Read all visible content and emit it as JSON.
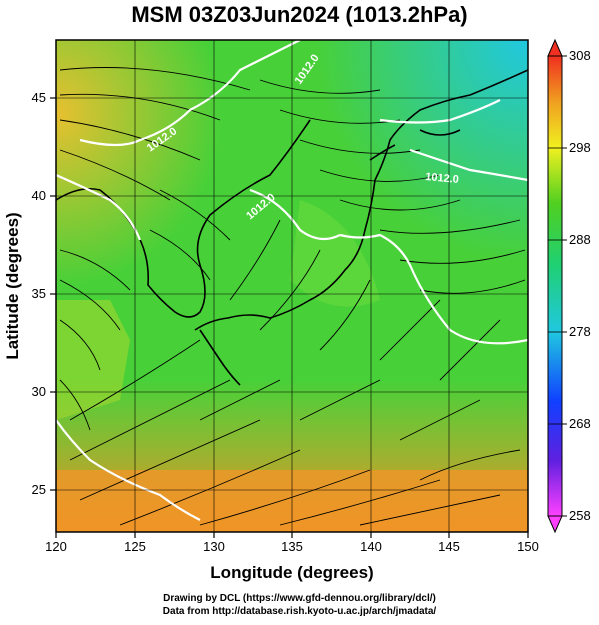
{
  "title": "MSM 03Z03Jun2024 (1013.2hPa)",
  "map": {
    "xlabel": "Longitude (degrees)",
    "ylabel": "Latitude  (degrees)",
    "lon_range": [
      120,
      150
    ],
    "lat_range": [
      22.5,
      48
    ],
    "lon_ticks": [
      "120",
      "125",
      "130",
      "135",
      "140",
      "145",
      "150"
    ],
    "lat_ticks": [
      "25",
      "30",
      "35",
      "40",
      "45"
    ],
    "contour_labels": [
      "1012.0",
      "1012.0",
      "1012.0",
      "1012.0"
    ],
    "colors": {
      "warm": "#f0a030",
      "mid": "#40d030",
      "cool": "#20c8c8",
      "contour": "#ffffff"
    }
  },
  "colorbar": {
    "min": 258,
    "max": 308,
    "ticks": [
      "308",
      "298",
      "288",
      "278",
      "268",
      "258"
    ]
  },
  "credits": {
    "line1": "Drawing by DCL (https://www.gfd-dennou.org/library/dcl/)",
    "line2": "Data from http://database.rish.kyoto-u.ac.jp/arch/jmadata/"
  }
}
